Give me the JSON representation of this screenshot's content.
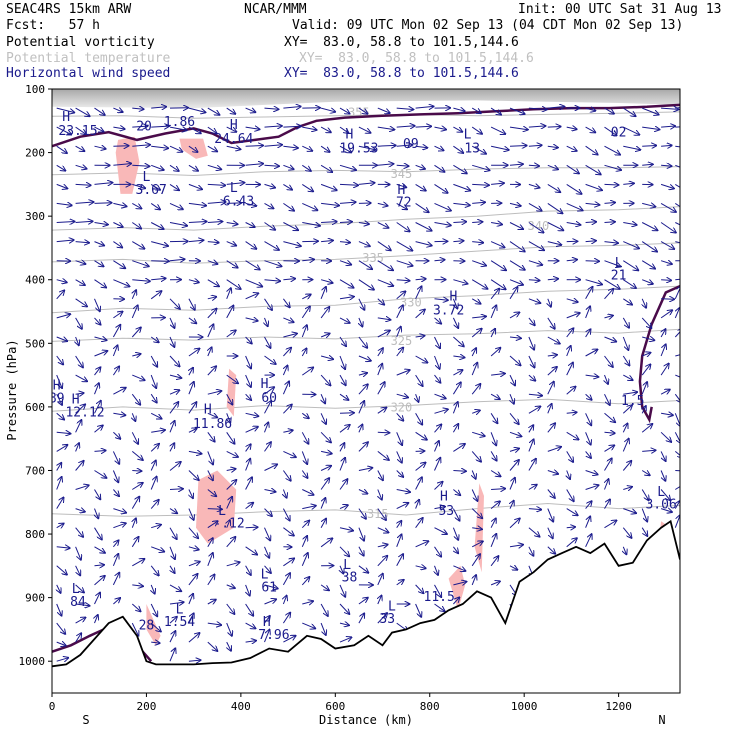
{
  "header": {
    "model": "SEAC4RS 15km ARW",
    "org": "NCAR/MMM",
    "init": "Init: 00 UTC Sat 31 Aug 13",
    "fcst": "Fcst:   57 h",
    "valid": "Valid: 09 UTC Mon 02 Sep 13 (04 CDT Mon 02 Sep 13)",
    "rows": [
      {
        "field": "Potential vorticity",
        "xy": "XY=  83.0, 58.8 to 101.5,144.6"
      },
      {
        "field": "Potential temperature",
        "xy": "XY=  83.0, 58.8 to 101.5,144.6"
      },
      {
        "field": "Horizontal wind speed",
        "xy": "XY=  83.0, 58.8 to 101.5,144.6"
      }
    ]
  },
  "colors": {
    "text": "#000000",
    "pv": "#1a1a8c",
    "theta": "#bdbdbd",
    "wind": "#1a1a8c",
    "pv_thick": "#4a0b4a",
    "pv_fill_high": "#f9b8b8",
    "pv_fill_stratosphere": "#9a9a9a",
    "terrain": "#000000"
  },
  "chart_data": {
    "type": "cross-section",
    "xlabel": "Distance (km)",
    "ylabel": "Pressure (hPa)",
    "xlim": [
      0,
      1330
    ],
    "ylim": [
      1050,
      100
    ],
    "x_ticks": [
      0,
      200,
      400,
      600,
      800,
      1000,
      1200
    ],
    "y_ticks": [
      100,
      200,
      300,
      400,
      500,
      600,
      700,
      800,
      900,
      1000
    ],
    "x_end_labels": {
      "left": "S",
      "right": "N"
    },
    "terrain": {
      "x": [
        0,
        30,
        60,
        90,
        120,
        150,
        180,
        200,
        220,
        260,
        300,
        340,
        380,
        420,
        460,
        500,
        540,
        570,
        600,
        640,
        670,
        700,
        720,
        750,
        780,
        810,
        840,
        870,
        900,
        930,
        960,
        990,
        1020,
        1050,
        1080,
        1110,
        1140,
        1170,
        1200,
        1230,
        1260,
        1290,
        1310,
        1330
      ],
      "p": [
        1008,
        1005,
        990,
        965,
        940,
        930,
        960,
        1000,
        1005,
        1005,
        1005,
        1003,
        1002,
        995,
        980,
        985,
        960,
        965,
        980,
        975,
        960,
        975,
        955,
        950,
        940,
        935,
        920,
        910,
        890,
        900,
        940,
        875,
        860,
        840,
        830,
        820,
        830,
        815,
        850,
        845,
        810,
        790,
        780,
        840
      ]
    },
    "theta_contours": [
      {
        "label": "315",
        "x": [
          0,
          150,
          300,
          450,
          600,
          750,
          900,
          1050,
          1200,
          1330
        ],
        "p": [
          768,
          772,
          770,
          765,
          762,
          770,
          760,
          752,
          760,
          755
        ],
        "label_x": 690,
        "label_p": 775
      },
      {
        "label": "320",
        "x": [
          0,
          150,
          300,
          450,
          600,
          750,
          900,
          1050,
          1200,
          1330
        ],
        "p": [
          607,
          600,
          605,
          598,
          602,
          598,
          592,
          588,
          595,
          590
        ],
        "label_x": 740,
        "label_p": 607
      },
      {
        "label": "325",
        "x": [
          0,
          150,
          300,
          450,
          600,
          750,
          900,
          1050,
          1200,
          1330
        ],
        "p": [
          497,
          492,
          495,
          490,
          493,
          487,
          485,
          480,
          484,
          478
        ],
        "label_x": 740,
        "label_p": 503
      },
      {
        "label": "330",
        "x": [
          0,
          150,
          300,
          450,
          600,
          750,
          900,
          1050,
          1200,
          1330
        ],
        "p": [
          452,
          445,
          448,
          442,
          440,
          430,
          425,
          418,
          415,
          410
        ],
        "label_x": 760,
        "label_p": 442
      },
      {
        "label": "335",
        "x": [
          0,
          150,
          300,
          450,
          600,
          750,
          900,
          1050,
          1200,
          1330
        ],
        "p": [
          372,
          368,
          374,
          370,
          368,
          362,
          355,
          348,
          346,
          342
        ],
        "label_x": 680,
        "label_p": 372
      },
      {
        "label": "340",
        "x": [
          0,
          150,
          300,
          450,
          600,
          750,
          900,
          1050,
          1200,
          1330
        ],
        "p": [
          322,
          318,
          322,
          316,
          312,
          305,
          300,
          292,
          290,
          285
        ],
        "label_x": 1030,
        "label_p": 322
      },
      {
        "label": "345",
        "x": [
          0,
          150,
          300,
          450,
          600,
          750,
          900,
          1050,
          1200,
          1330
        ],
        "p": [
          235,
          232,
          236,
          230,
          228,
          230,
          226,
          224,
          224,
          222
        ],
        "label_x": 740,
        "label_p": 240
      },
      {
        "label": "355",
        "x": [
          0,
          150,
          300,
          450,
          600,
          750,
          900,
          1050,
          1200,
          1330
        ],
        "p": [
          143,
          142,
          146,
          144,
          142,
          140,
          142,
          140,
          138,
          136
        ],
        "label_x": 650,
        "label_p": 143
      }
    ],
    "pv_positive_regions": [
      {
        "x": [
          140,
          175,
          185,
          170,
          145,
          135
        ],
        "p": [
          180,
          175,
          215,
          265,
          265,
          200
        ]
      },
      {
        "x": [
          270,
          320,
          330,
          305,
          275
        ],
        "p": [
          178,
          178,
          205,
          210,
          195
        ]
      },
      {
        "x": [
          375,
          390,
          385,
          370
        ],
        "p": [
          540,
          550,
          615,
          600
        ]
      },
      {
        "x": [
          310,
          350,
          390,
          385,
          330,
          305
        ],
        "p": [
          715,
          700,
          730,
          790,
          815,
          790
        ]
      },
      {
        "x": [
          200,
          230,
          220,
          200
        ],
        "p": [
          910,
          960,
          975,
          950
        ]
      },
      {
        "x": [
          865,
          875,
          860,
          840
        ],
        "p": [
          850,
          880,
          920,
          870
        ]
      },
      {
        "x": [
          905,
          915,
          910,
          895
        ],
        "p": [
          720,
          740,
          860,
          820
        ]
      },
      {
        "x": [
          1290,
          1310,
          1305,
          1285
        ],
        "p": [
          780,
          790,
          825,
          810
        ]
      }
    ],
    "pv_labels": [
      {
        "text": "H",
        "x": 30,
        "p": 150
      },
      {
        "text": "23.15",
        "x": 55,
        "p": 172
      },
      {
        "text": "20",
        "x": 195,
        "p": 165
      },
      {
        "text": "1.86",
        "x": 270,
        "p": 158
      },
      {
        "text": "H",
        "x": 385,
        "p": 163
      },
      {
        "text": "24.64",
        "x": 385,
        "p": 185
      },
      {
        "text": "H",
        "x": 630,
        "p": 178
      },
      {
        "text": "19.53",
        "x": 650,
        "p": 200
      },
      {
        "text": "09",
        "x": 760,
        "p": 193
      },
      {
        "text": "L",
        "x": 880,
        "p": 178
      },
      {
        "text": "13",
        "x": 890,
        "p": 200
      },
      {
        "text": "02",
        "x": 1200,
        "p": 175
      },
      {
        "text": "L",
        "x": 200,
        "p": 245
      },
      {
        "text": "3.67",
        "x": 210,
        "p": 265
      },
      {
        "text": "L",
        "x": 385,
        "p": 262
      },
      {
        "text": "6.43",
        "x": 395,
        "p": 283
      },
      {
        "text": "H",
        "x": 740,
        "p": 265
      },
      {
        "text": "72",
        "x": 745,
        "p": 285
      },
      {
        "text": "L",
        "x": 1200,
        "p": 380
      },
      {
        "text": "21",
        "x": 1200,
        "p": 400
      },
      {
        "text": "H",
        "x": 850,
        "p": 433
      },
      {
        "text": "3.72",
        "x": 840,
        "p": 455
      },
      {
        "text": "H",
        "x": 450,
        "p": 570
      },
      {
        "text": "60",
        "x": 460,
        "p": 592
      },
      {
        "text": "H",
        "x": 10,
        "p": 573
      },
      {
        "text": "89",
        "x": 10,
        "p": 593
      },
      {
        "text": "H",
        "x": 50,
        "p": 595
      },
      {
        "text": "12.12",
        "x": 70,
        "p": 615
      },
      {
        "text": "H",
        "x": 330,
        "p": 610
      },
      {
        "text": "11.86",
        "x": 340,
        "p": 633
      },
      {
        "text": "1.5",
        "x": 1230,
        "p": 597
      },
      {
        "text": "H",
        "x": 830,
        "p": 747
      },
      {
        "text": "53",
        "x": 835,
        "p": 770
      },
      {
        "text": "L",
        "x": 360,
        "p": 770
      },
      {
        "text": "-.12",
        "x": 375,
        "p": 790
      },
      {
        "text": "L",
        "x": 1290,
        "p": 740
      },
      {
        "text": "3.06",
        "x": 1290,
        "p": 760
      },
      {
        "text": "L",
        "x": 450,
        "p": 870
      },
      {
        "text": "61",
        "x": 460,
        "p": 890
      },
      {
        "text": "L",
        "x": 625,
        "p": 855
      },
      {
        "text": "38",
        "x": 630,
        "p": 875
      },
      {
        "text": "11.5",
        "x": 820,
        "p": 905
      },
      {
        "text": "L",
        "x": 50,
        "p": 893
      },
      {
        "text": "84",
        "x": 55,
        "p": 913
      },
      {
        "text": "L",
        "x": 270,
        "p": 925
      },
      {
        "text": "1.54",
        "x": 270,
        "p": 945
      },
      {
        "text": "L",
        "x": 720,
        "p": 920
      },
      {
        "text": "33",
        "x": 710,
        "p": 940
      },
      {
        "text": "H",
        "x": 455,
        "p": 945
      },
      {
        "text": "7.96",
        "x": 470,
        "p": 965
      },
      {
        "text": "28",
        "x": 200,
        "p": 950
      }
    ],
    "wind_columns_x": [
      10,
      50,
      90,
      130,
      170,
      210,
      250,
      290,
      330,
      370,
      410,
      450,
      490,
      530,
      570,
      610,
      650,
      690,
      730,
      770,
      810,
      850,
      890,
      930,
      970,
      1010,
      1050,
      1090,
      1130,
      1170,
      1210,
      1250,
      1290,
      1320
    ],
    "wind_rows_p": [
      130,
      160,
      190,
      220,
      250,
      280,
      310,
      340,
      370,
      400,
      430,
      460,
      490,
      520,
      550,
      580,
      610,
      640,
      670,
      700,
      730,
      760,
      790,
      820,
      850,
      880,
      910,
      940,
      970,
      1000
    ]
  }
}
